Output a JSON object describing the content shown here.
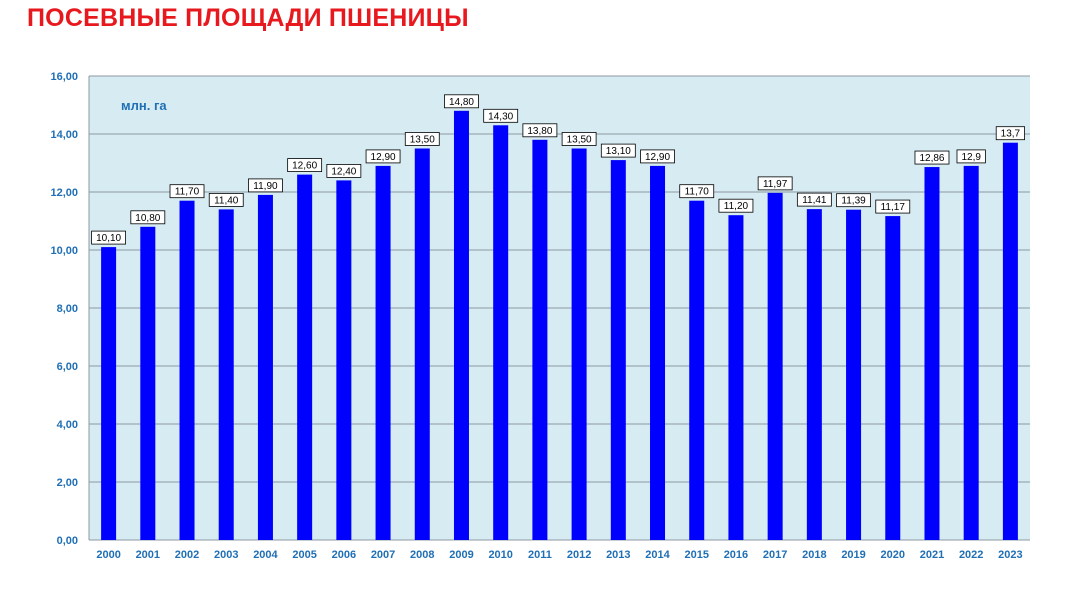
{
  "page": {
    "title": "ПОСЕВНЫЕ ПЛОЩАДИ ПШЕНИЦЫ"
  },
  "colors": {
    "title": "#e8191e",
    "bar": "#0000ff",
    "plot_background": "#d6ebf2",
    "gridline": "#8c9aa3",
    "axis_labels": "#1f6fb5"
  },
  "chart_data": {
    "type": "bar",
    "title": "ПОСЕВНЫЕ ПЛОЩАДИ ПШЕНИЦЫ",
    "unit_label": "млн. га",
    "categories": [
      "2000",
      "2001",
      "2002",
      "2003",
      "2004",
      "2005",
      "2006",
      "2007",
      "2008",
      "2009",
      "2010",
      "2011",
      "2012",
      "2013",
      "2014",
      "2015",
      "2016",
      "2017",
      "2018",
      "2019",
      "2020",
      "2021",
      "2022",
      "2023"
    ],
    "values": [
      10.1,
      10.8,
      11.7,
      11.4,
      11.9,
      12.6,
      12.4,
      12.9,
      13.5,
      14.8,
      14.3,
      13.8,
      13.5,
      13.1,
      12.9,
      11.7,
      11.2,
      11.97,
      11.41,
      11.39,
      11.17,
      12.86,
      12.9,
      13.7
    ],
    "value_labels": [
      "10,10",
      "10,80",
      "11,70",
      "11,40",
      "11,90",
      "12,60",
      "12,40",
      "12,90",
      "13,50",
      "14,80",
      "14,30",
      "13,80",
      "13,50",
      "13,10",
      "12,90",
      "11,70",
      "11,20",
      "11,97",
      "11,41",
      "11,39",
      "11,17",
      "12,86",
      "12,9",
      "13,7"
    ],
    "ylim": [
      0,
      16
    ],
    "yticks": [
      0,
      2,
      4,
      6,
      8,
      10,
      12,
      14,
      16
    ],
    "ytick_labels": [
      "0,00",
      "2,00",
      "4,00",
      "6,00",
      "8,00",
      "10,00",
      "12,00",
      "14,00",
      "16,00"
    ],
    "grid": true,
    "legend": "none"
  }
}
